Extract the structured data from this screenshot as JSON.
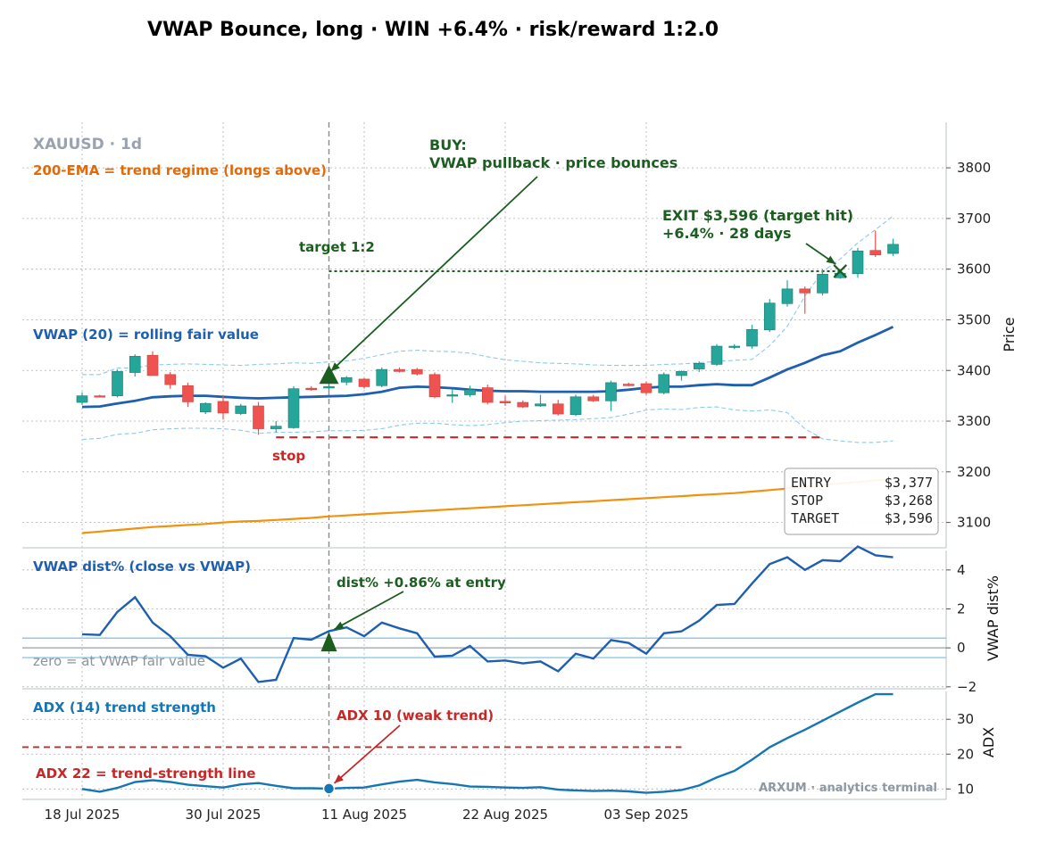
{
  "title": "VWAP Bounce, long · WIN +6.4% · risk/reward 1:2.0",
  "colors": {
    "up": "#26a69a",
    "down": "#ef5350",
    "vwap": "#1f5fb0",
    "band": "#8ec9ea",
    "ema": "#f0920f",
    "green": "#1b5e20",
    "red": "#c62828",
    "adx": "#1576b5",
    "grid": "#b0b0b0"
  },
  "chart_data": [
    {
      "type": "candlestick",
      "ylabel": "Price",
      "ylim": [
        3050,
        3890
      ],
      "yticks": [
        3100,
        3200,
        3300,
        3400,
        3500,
        3600,
        3700,
        3800
      ],
      "xticks": [
        {
          "i": 0,
          "label": "18 Jul 2025"
        },
        {
          "i": 8,
          "label": "30 Jul 2025"
        },
        {
          "i": 16,
          "label": "11 Aug 2025"
        },
        {
          "i": 24,
          "label": "22 Aug 2025"
        },
        {
          "i": 32,
          "label": "03 Sep 2025"
        }
      ],
      "candles": [
        {
          "o": 3337,
          "h": 3357,
          "l": 3332,
          "c": 3350
        },
        {
          "o": 3350,
          "h": 3352,
          "l": 3347,
          "c": 3348
        },
        {
          "o": 3350,
          "h": 3402,
          "l": 3347,
          "c": 3398
        },
        {
          "o": 3396,
          "h": 3432,
          "l": 3388,
          "c": 3428
        },
        {
          "o": 3430,
          "h": 3438,
          "l": 3392,
          "c": 3390
        },
        {
          "o": 3392,
          "h": 3397,
          "l": 3364,
          "c": 3372
        },
        {
          "o": 3370,
          "h": 3376,
          "l": 3328,
          "c": 3338
        },
        {
          "o": 3318,
          "h": 3337,
          "l": 3314,
          "c": 3335
        },
        {
          "o": 3339,
          "h": 3350,
          "l": 3303,
          "c": 3316
        },
        {
          "o": 3315,
          "h": 3334,
          "l": 3312,
          "c": 3330
        },
        {
          "o": 3330,
          "h": 3338,
          "l": 3273,
          "c": 3285
        },
        {
          "o": 3285,
          "h": 3300,
          "l": 3278,
          "c": 3290
        },
        {
          "o": 3287,
          "h": 3369,
          "l": 3285,
          "c": 3364
        },
        {
          "o": 3365,
          "h": 3369,
          "l": 3360,
          "c": 3362
        },
        {
          "o": 3366,
          "h": 3371,
          "l": 3362,
          "c": 3368
        },
        {
          "o": 3377,
          "h": 3389,
          "l": 3371,
          "c": 3386
        },
        {
          "o": 3383,
          "h": 3385,
          "l": 3364,
          "c": 3368
        },
        {
          "o": 3370,
          "h": 3406,
          "l": 3367,
          "c": 3402
        },
        {
          "o": 3402,
          "h": 3406,
          "l": 3396,
          "c": 3398
        },
        {
          "o": 3402,
          "h": 3405,
          "l": 3390,
          "c": 3393
        },
        {
          "o": 3392,
          "h": 3396,
          "l": 3345,
          "c": 3348
        },
        {
          "o": 3350,
          "h": 3363,
          "l": 3336,
          "c": 3352
        },
        {
          "o": 3352,
          "h": 3370,
          "l": 3348,
          "c": 3362
        },
        {
          "o": 3366,
          "h": 3372,
          "l": 3333,
          "c": 3337
        },
        {
          "o": 3339,
          "h": 3350,
          "l": 3330,
          "c": 3336
        },
        {
          "o": 3337,
          "h": 3341,
          "l": 3326,
          "c": 3328
        },
        {
          "o": 3330,
          "h": 3352,
          "l": 3328,
          "c": 3334
        },
        {
          "o": 3334,
          "h": 3342,
          "l": 3311,
          "c": 3314
        },
        {
          "o": 3313,
          "h": 3352,
          "l": 3310,
          "c": 3348
        },
        {
          "o": 3348,
          "h": 3352,
          "l": 3338,
          "c": 3340
        },
        {
          "o": 3340,
          "h": 3380,
          "l": 3320,
          "c": 3376
        },
        {
          "o": 3373,
          "h": 3376,
          "l": 3369,
          "c": 3370
        },
        {
          "o": 3374,
          "h": 3378,
          "l": 3352,
          "c": 3356
        },
        {
          "o": 3356,
          "h": 3396,
          "l": 3353,
          "c": 3392
        },
        {
          "o": 3390,
          "h": 3400,
          "l": 3380,
          "c": 3398
        },
        {
          "o": 3403,
          "h": 3418,
          "l": 3397,
          "c": 3414
        },
        {
          "o": 3412,
          "h": 3452,
          "l": 3409,
          "c": 3448
        },
        {
          "o": 3446,
          "h": 3452,
          "l": 3442,
          "c": 3448
        },
        {
          "o": 3448,
          "h": 3490,
          "l": 3443,
          "c": 3481
        },
        {
          "o": 3480,
          "h": 3541,
          "l": 3476,
          "c": 3533
        },
        {
          "o": 3532,
          "h": 3578,
          "l": 3526,
          "c": 3561
        },
        {
          "o": 3561,
          "h": 3566,
          "l": 3512,
          "c": 3553
        },
        {
          "o": 3553,
          "h": 3600,
          "l": 3548,
          "c": 3590
        },
        {
          "o": 3583,
          "h": 3594,
          "l": 3581,
          "c": 3592
        },
        {
          "o": 3591,
          "h": 3642,
          "l": 3583,
          "c": 3636
        },
        {
          "o": 3637,
          "h": 3676,
          "l": 3624,
          "c": 3628
        },
        {
          "o": 3631,
          "h": 3660,
          "l": 3626,
          "c": 3649
        }
      ],
      "vwap": [
        3328,
        3329,
        3335,
        3340,
        3347,
        3349,
        3350,
        3350,
        3348,
        3346,
        3345,
        3346,
        3347,
        3348,
        3349,
        3350,
        3353,
        3358,
        3366,
        3368,
        3367,
        3365,
        3362,
        3360,
        3359,
        3359,
        3358,
        3358,
        3358,
        3358,
        3359,
        3362,
        3366,
        3368,
        3368,
        3371,
        3373,
        3371,
        3371,
        3386,
        3402,
        3415,
        3430,
        3438,
        3455,
        3470,
        3486
      ],
      "band_upper": [
        3392,
        3392,
        3405,
        3405,
        3411,
        3412,
        3413,
        3412,
        3411,
        3410,
        3412,
        3413,
        3415,
        3414,
        3417,
        3419,
        3424,
        3431,
        3438,
        3440,
        3438,
        3437,
        3434,
        3427,
        3421,
        3418,
        3415,
        3414,
        3413,
        3411,
        3410,
        3410,
        3410,
        3412,
        3413,
        3415,
        3418,
        3420,
        3422,
        3449,
        3487,
        3547,
        3595,
        3620,
        3652,
        3678,
        3705
      ],
      "band_lower": [
        3264,
        3266,
        3274,
        3276,
        3283,
        3285,
        3286,
        3286,
        3285,
        3282,
        3276,
        3278,
        3278,
        3279,
        3281,
        3281,
        3282,
        3285,
        3292,
        3296,
        3296,
        3293,
        3291,
        3293,
        3297,
        3300,
        3301,
        3302,
        3303,
        3305,
        3307,
        3314,
        3322,
        3324,
        3323,
        3327,
        3328,
        3322,
        3320,
        3322,
        3317,
        3285,
        3265,
        3261,
        3258,
        3258,
        3261
      ],
      "ema200": [
        3079,
        3082,
        3085,
        3088,
        3091,
        3093,
        3095,
        3097,
        3100,
        3102,
        3103,
        3105,
        3107,
        3109,
        3112,
        3114,
        3116,
        3118,
        3120,
        3122,
        3124,
        3126,
        3128,
        3130,
        3132,
        3134,
        3136,
        3138,
        3140,
        3142,
        3144,
        3146,
        3148,
        3150,
        3152,
        3154,
        3156,
        3158,
        3161,
        3164,
        3167,
        3170,
        3174,
        3177,
        3180,
        3183,
        3186
      ],
      "entry": {
        "i": 14,
        "price": 3377
      },
      "stop": 3268,
      "target": 3596,
      "exit": {
        "i": 43,
        "price": 3596
      },
      "labels": {
        "symbol": "XAUUSD · 1d",
        "ema": "200-EMA = trend regime (longs above)",
        "vwap": "VWAP (20) = rolling fair value",
        "buy_line1": "BUY:",
        "buy_line2": "VWAP pullback · price bounces",
        "target": "target 1:2",
        "stop": "stop",
        "exit_line1": "EXIT $3,596 (target hit)",
        "exit_line2": "+6.4%  ·  28 days"
      },
      "info_box": [
        {
          "k": "ENTRY",
          "v": "$3,377"
        },
        {
          "k": "STOP",
          "v": "$3,268"
        },
        {
          "k": "TARGET",
          "v": "$3,596"
        }
      ]
    },
    {
      "type": "line",
      "ylabel": "VWAP dist%",
      "ylim": [
        -2.1,
        5.0
      ],
      "yticks": [
        -2,
        0,
        2,
        4
      ],
      "band": [
        0.5,
        -0.5
      ],
      "values": [
        0.7,
        0.66,
        1.85,
        2.6,
        1.3,
        0.6,
        -0.36,
        -0.43,
        -1.02,
        -0.55,
        -1.75,
        -1.64,
        0.5,
        0.42,
        0.86,
        1.05,
        0.6,
        1.3,
        1.0,
        0.75,
        -0.45,
        -0.4,
        0.1,
        -0.7,
        -0.65,
        -0.8,
        -0.7,
        -1.2,
        -0.3,
        -0.55,
        0.4,
        0.25,
        -0.3,
        0.75,
        0.85,
        1.4,
        2.2,
        2.25,
        3.3,
        4.3,
        4.65,
        4.0,
        4.5,
        4.45,
        5.2,
        4.75,
        4.65
      ],
      "labels": {
        "title": "VWAP dist% (close vs VWAP)",
        "entry_note": "dist% +0.86% at entry",
        "zero": "zero = at VWAP fair value"
      }
    },
    {
      "type": "line",
      "ylabel": "ADX",
      "ylim": [
        7.0,
        38.0
      ],
      "yticks": [
        10,
        20,
        30
      ],
      "threshold": 22,
      "values": [
        10.0,
        9.2,
        10.3,
        12.0,
        12.5,
        12.0,
        11.2,
        10.8,
        10.4,
        11.3,
        11.7,
        10.9,
        10.2,
        10.2,
        10.1,
        10.3,
        10.4,
        11.3,
        12.1,
        12.6,
        11.9,
        11.4,
        10.7,
        10.6,
        10.4,
        10.3,
        10.5,
        9.8,
        9.6,
        9.4,
        9.5,
        9.3,
        8.9,
        9.2,
        9.7,
        11.0,
        13.3,
        15.2,
        18.4,
        22.0,
        24.6,
        27.0,
        29.6,
        32.2,
        34.8,
        37.4,
        40.0
      ],
      "labels": {
        "title": "ADX (14) trend strength",
        "threshold": "ADX 22 = trend-strength line",
        "entry_note": "ADX 10 (weak trend)"
      }
    }
  ],
  "watermark": "ARXUM · analytics terminal"
}
